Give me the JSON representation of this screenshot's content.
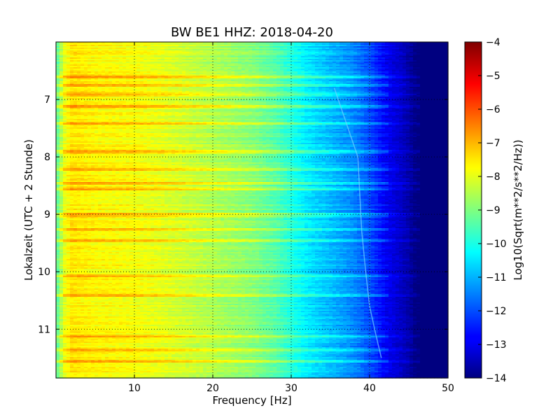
{
  "chart_data": {
    "type": "heatmap",
    "title": "BW BE1 HHZ: 2018-04-20",
    "xlabel": "Frequency [Hz]",
    "ylabel": "Lokalzeit (UTC + 2 Stunde)",
    "xlim": [
      0,
      50
    ],
    "ylim": [
      6,
      11.85
    ],
    "y_inverted": true,
    "x_ticks": [
      10,
      20,
      30,
      40,
      50
    ],
    "x_tick_labels": [
      "10",
      "20",
      "30",
      "40",
      "50"
    ],
    "y_ticks": [
      7,
      8,
      9,
      10,
      11
    ],
    "y_tick_labels": [
      "7",
      "8",
      "9",
      "10",
      "11"
    ],
    "grid": true,
    "colormap": "jet",
    "colorbar": {
      "label": "Log10(Sqrt(m**2/s**2/Hz))",
      "range": [
        -14,
        -4
      ],
      "ticks": [
        -4,
        -5,
        -6,
        -7,
        -8,
        -9,
        -10,
        -11,
        -12,
        -13,
        -14
      ],
      "tick_labels": [
        "−4",
        "−5",
        "−6",
        "−7",
        "−8",
        "−9",
        "−10",
        "−11",
        "−12",
        "−13",
        "−14"
      ]
    },
    "approx_profile": {
      "frequency_hz": [
        0,
        1,
        2,
        5,
        10,
        15,
        20,
        25,
        28,
        30,
        32,
        35,
        38,
        40,
        42,
        44,
        45,
        46,
        50
      ],
      "log10_amplitude": [
        -9.5,
        -8.0,
        -7.5,
        -7.7,
        -7.8,
        -8.1,
        -8.5,
        -8.9,
        -9.4,
        -9.9,
        -10.4,
        -10.9,
        -11.4,
        -12.0,
        -12.8,
        -13.3,
        -13.6,
        -14.0,
        -14.0
      ]
    },
    "bright_bands_hours": [
      6.6,
      6.75,
      6.9,
      7.1,
      7.4,
      7.9,
      8.2,
      8.45,
      8.55,
      9.0,
      9.25,
      9.45,
      10.05,
      10.4,
      11.1,
      11.35,
      11.55
    ],
    "drift_line": {
      "hours": [
        6.8,
        7.2,
        7.6,
        8.0,
        9.3,
        10.0,
        10.6,
        11.1,
        11.5
      ],
      "frequency_hz": [
        35.5,
        36.5,
        37.5,
        38.5,
        39.0,
        39.5,
        40.0,
        40.8,
        41.5
      ]
    }
  }
}
